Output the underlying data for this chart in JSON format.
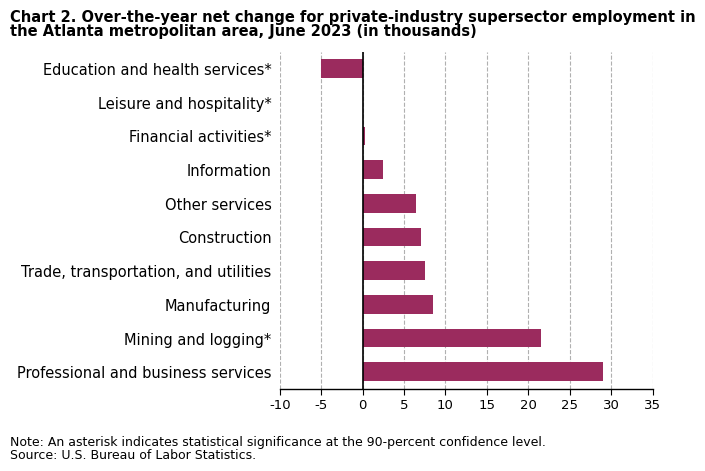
{
  "title_line1": "Chart 2. Over-the-year net change for private-industry supersector employment in",
  "title_line2": "the Atlanta metropolitan area, June 2023 (in thousands)",
  "categories": [
    "Education and health services*",
    "Leisure and hospitality*",
    "Financial activities*",
    "Information",
    "Other services",
    "Construction",
    "Trade, transportation, and utilities",
    "Manufacturing",
    "Mining and logging*",
    "Professional and business services"
  ],
  "values": [
    29.0,
    21.5,
    8.5,
    7.5,
    7.0,
    6.5,
    2.5,
    0.3,
    0.0,
    -5.0
  ],
  "bar_color": "#9b2b5e",
  "xlim": [
    -10,
    35
  ],
  "xticks": [
    -10,
    -5,
    0,
    5,
    10,
    15,
    20,
    25,
    30,
    35
  ],
  "note": "Note: An asterisk indicates statistical significance at the 90-percent confidence level.",
  "source": "Source: U.S. Bureau of Labor Statistics.",
  "background_color": "#ffffff",
  "grid_color": "#b0b0b0",
  "title_fontsize": 10.5,
  "tick_fontsize": 9.5,
  "label_fontsize": 10.5,
  "note_fontsize": 9.0
}
